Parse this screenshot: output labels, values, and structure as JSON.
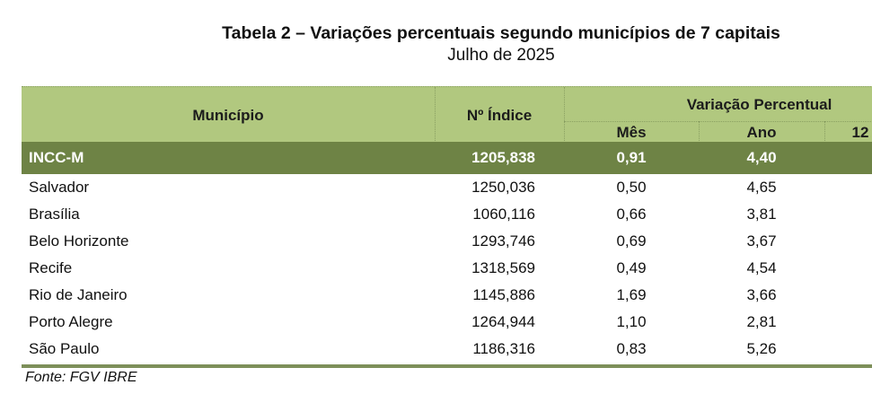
{
  "title": "Tabela 2 – Variações percentuais segundo municípios de 7 capitais",
  "subtitle": "Julho de 2025",
  "table": {
    "headers": {
      "municipio": "Município",
      "indice": "Nº Índice",
      "variacao": "Variação Percentual",
      "mes": "Mês",
      "ano": "Ano",
      "doze": "12"
    },
    "summary": {
      "municipio": "INCC-M",
      "indice": "1205,838",
      "mes": "0,91",
      "ano": "4,40"
    },
    "rows": [
      {
        "municipio": "Salvador",
        "indice": "1250,036",
        "mes": "0,50",
        "ano": "4,65"
      },
      {
        "municipio": "Brasília",
        "indice": "1060,116",
        "mes": "0,66",
        "ano": "3,81"
      },
      {
        "municipio": "Belo Horizonte",
        "indice": "1293,746",
        "mes": "0,69",
        "ano": "3,67"
      },
      {
        "municipio": "Recife",
        "indice": "1318,569",
        "mes": "0,49",
        "ano": "4,54"
      },
      {
        "municipio": "Rio de Janeiro",
        "indice": "1145,886",
        "mes": "1,69",
        "ano": "3,66"
      },
      {
        "municipio": "Porto Alegre",
        "indice": "1264,944",
        "mes": "1,10",
        "ano": "2,81"
      },
      {
        "municipio": "São Paulo",
        "indice": "1186,316",
        "mes": "0,83",
        "ano": "5,26"
      }
    ]
  },
  "source": "Fonte: FGV IBRE",
  "colors": {
    "header_bg": "#b1c87f",
    "summary_bg": "#6e8345",
    "rule": "#7d8f5a"
  }
}
